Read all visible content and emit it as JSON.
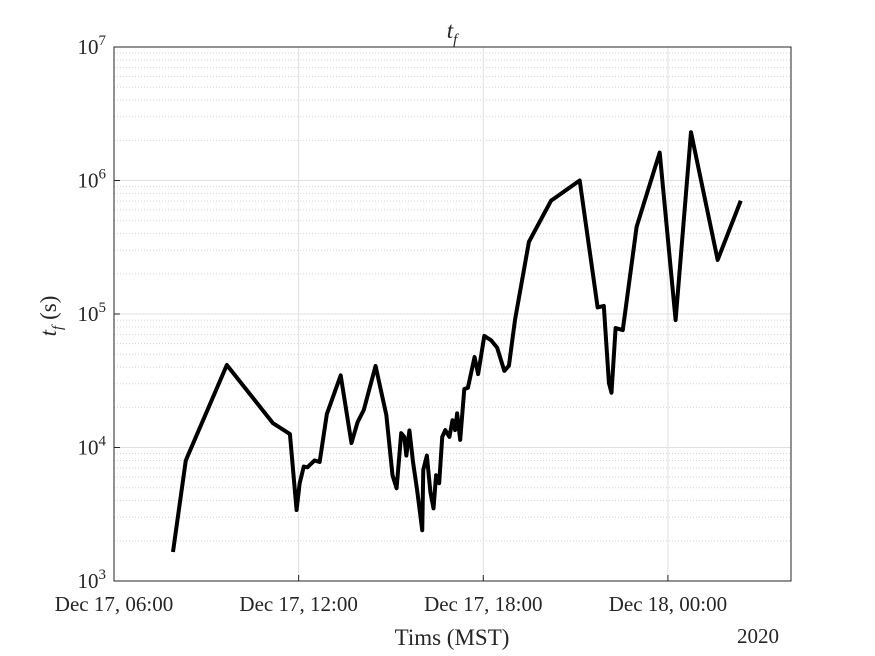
{
  "chart_data": {
    "type": "line",
    "title": {
      "base": "t",
      "sub": "f"
    },
    "xlabel": "Tims (MST)",
    "ylabel": {
      "base": "t",
      "sub": "f",
      "unit": "(s)"
    },
    "x_secondary_label": "2020",
    "x": [
      "2020-12-17 07:55",
      "2020-12-17 08:20",
      "2020-12-17 09:40",
      "2020-12-17 11:10",
      "2020-12-17 11:43",
      "2020-12-17 11:56",
      "2020-12-17 12:02",
      "2020-12-17 12:10",
      "2020-12-17 12:17",
      "2020-12-17 12:31",
      "2020-12-17 12:41",
      "2020-12-17 12:55",
      "2020-12-17 13:22",
      "2020-12-17 13:43",
      "2020-12-17 13:55",
      "2020-12-17 14:07",
      "2020-12-17 14:30",
      "2020-12-17 14:51",
      "2020-12-17 15:03",
      "2020-12-17 15:11",
      "2020-12-17 15:20",
      "2020-12-17 15:26",
      "2020-12-17 15:30",
      "2020-12-17 15:36",
      "2020-12-17 15:43",
      "2020-12-17 15:51",
      "2020-12-17 16:01",
      "2020-12-17 16:03",
      "2020-12-17 16:10",
      "2020-12-17 16:17",
      "2020-12-17 16:23",
      "2020-12-17 16:28",
      "2020-12-17 16:34",
      "2020-12-17 16:40",
      "2020-12-17 16:46",
      "2020-12-17 16:54",
      "2020-12-17 17:00",
      "2020-12-17 17:05",
      "2020-12-17 17:09",
      "2020-12-17 17:15",
      "2020-12-17 17:23",
      "2020-12-17 17:30",
      "2020-12-17 17:43",
      "2020-12-17 17:50",
      "2020-12-17 18:02",
      "2020-12-17 18:15",
      "2020-12-17 18:27",
      "2020-12-17 18:41",
      "2020-12-17 18:50",
      "2020-12-17 19:02",
      "2020-12-17 19:29",
      "2020-12-17 20:12",
      "2020-12-17 21:08",
      "2020-12-17 21:43",
      "2020-12-17 21:55",
      "2020-12-17 22:05",
      "2020-12-17 22:10",
      "2020-12-17 22:18",
      "2020-12-17 22:32",
      "2020-12-17 22:59",
      "2020-12-17 23:44",
      "2020-12-18 00:15",
      "2020-12-18 00:45",
      "2020-12-18 01:37",
      "2020-12-18 02:22"
    ],
    "values": [
      1650,
      8000,
      41500,
      15200,
      12600,
      3400,
      5400,
      7200,
      7100,
      8000,
      7800,
      17800,
      34700,
      10800,
      15500,
      19100,
      40800,
      17500,
      6200,
      4950,
      12800,
      12000,
      8700,
      13400,
      7800,
      4800,
      2400,
      6800,
      8700,
      4600,
      3500,
      6200,
      5400,
      12000,
      13500,
      12000,
      16000,
      13500,
      18000,
      11400,
      27400,
      28000,
      47600,
      35500,
      68500,
      63700,
      56000,
      37500,
      41000,
      91000,
      347000,
      705000,
      1000000,
      112000,
      115000,
      30400,
      25700,
      78500,
      75800,
      450000,
      1620000,
      90000,
      2300000,
      254000,
      705000
    ],
    "color": "#000000",
    "xlim": [
      "2020-12-17 06:00",
      "2020-12-18 04:00"
    ],
    "xticks": [
      {
        "value": "2020-12-17 06:00",
        "label": "Dec 17, 06:00"
      },
      {
        "value": "2020-12-17 12:00",
        "label": "Dec 17, 12:00"
      },
      {
        "value": "2020-12-17 18:00",
        "label": "Dec 17, 18:00"
      },
      {
        "value": "2020-12-18 00:00",
        "label": "Dec 18, 00:00"
      }
    ],
    "ylim": [
      1000,
      10000000
    ],
    "yticks": [
      {
        "value": 1000,
        "label": "10",
        "exponent": "3"
      },
      {
        "value": 10000,
        "label": "10",
        "exponent": "4"
      },
      {
        "value": 100000,
        "label": "10",
        "exponent": "5"
      },
      {
        "value": 1000000,
        "label": "10",
        "exponent": "6"
      },
      {
        "value": 10000000,
        "label": "10",
        "exponent": "7"
      }
    ],
    "log_y": true,
    "grid": true,
    "minor_grid": true
  }
}
